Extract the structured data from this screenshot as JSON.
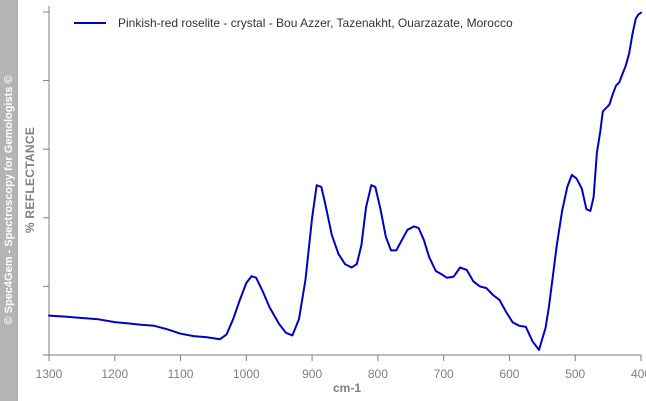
{
  "watermark": "© Spec4Gem - Spectroscopy for Gemologists ©",
  "chart_data": {
    "type": "line",
    "xlabel": "cm-1",
    "ylabel": "% REFLECTANCE",
    "xlim": [
      1300,
      400
    ],
    "x_reversed": true,
    "x_ticks": [
      1300,
      1200,
      1100,
      1000,
      900,
      800,
      700,
      600,
      500,
      400
    ],
    "ylim": [
      0,
      100
    ],
    "y_ticks_labeled": false,
    "grid": false,
    "legend_position": "top-left",
    "series": [
      {
        "name": "Pinkish-red roselite - crystal - Bou Azzer, Tazenakht, Ouarzazate, Morocco",
        "color": "#0000cc",
        "x": [
          1300,
          1275,
          1250,
          1225,
          1200,
          1180,
          1160,
          1140,
          1120,
          1100,
          1080,
          1060,
          1040,
          1030,
          1020,
          1010,
          1000,
          992,
          985,
          975,
          965,
          950,
          940,
          930,
          920,
          910,
          900,
          893,
          886,
          880,
          870,
          860,
          850,
          840,
          832,
          825,
          818,
          810,
          804,
          796,
          788,
          780,
          772,
          765,
          755,
          745,
          738,
          730,
          722,
          712,
          703,
          695,
          685,
          675,
          665,
          655,
          645,
          635,
          625,
          615,
          605,
          595,
          585,
          575,
          565,
          555,
          545,
          540,
          535,
          528,
          520,
          512,
          505,
          498,
          490,
          483,
          477,
          472,
          467,
          462,
          458,
          453,
          448,
          443,
          438,
          433,
          428,
          423,
          418,
          413,
          408,
          404,
          400
        ],
        "y": [
          11.5,
          11.2,
          10.8,
          10.4,
          9.6,
          9.2,
          8.8,
          8.5,
          7.5,
          6.2,
          5.5,
          5.2,
          4.6,
          6.0,
          10.5,
          16.0,
          21.0,
          23.0,
          22.5,
          18.5,
          14.0,
          9.0,
          6.5,
          5.7,
          10.5,
          22.0,
          40.0,
          49.5,
          49.0,
          44.0,
          35.0,
          29.5,
          26.5,
          25.5,
          26.5,
          32.0,
          43.0,
          49.5,
          49.0,
          42.5,
          34.5,
          30.5,
          30.5,
          33.0,
          36.5,
          37.5,
          37.0,
          33.5,
          28.5,
          24.5,
          23.5,
          22.5,
          22.8,
          25.5,
          24.8,
          21.5,
          20.0,
          19.5,
          17.5,
          16.0,
          12.5,
          9.5,
          8.5,
          8.2,
          4.0,
          1.5,
          8.0,
          14.0,
          21.5,
          32.0,
          42.0,
          49.0,
          52.5,
          51.5,
          48.5,
          42.5,
          42.0,
          46.0,
          59.0,
          65.0,
          71.0,
          72.0,
          73.0,
          76.0,
          78.5,
          79.5,
          82.0,
          84.5,
          88.0,
          93.5,
          98.0,
          99.3,
          99.8
        ]
      }
    ]
  }
}
